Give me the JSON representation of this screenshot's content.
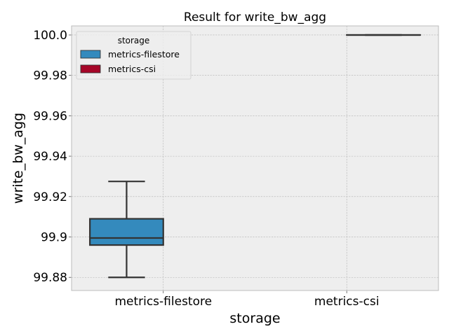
{
  "chart_data": {
    "type": "box",
    "title": "Result for write_bw_agg",
    "xlabel": "storage",
    "ylabel": "write_bw_agg",
    "categories": [
      "metrics-filestore",
      "metrics-csi"
    ],
    "ylim": [
      99.8735,
      100.0045
    ],
    "yticks": [
      99.88,
      99.9,
      99.92,
      99.94,
      99.96,
      99.98,
      100.0
    ],
    "ytick_labels": [
      "99.88",
      "99.9",
      "99.92",
      "99.94",
      "99.96",
      "99.98",
      "100.0"
    ],
    "grid": true,
    "legend": {
      "title": "storage",
      "placement": "upper-left",
      "entries": [
        {
          "name": "metrics-filestore",
          "color": "#348ABD"
        },
        {
          "name": "metrics-csi",
          "color": "#A60628"
        }
      ]
    },
    "boxes": [
      {
        "category": "metrics-filestore",
        "min": 99.88,
        "q1": 99.896,
        "median": 99.8995,
        "q3": 99.909,
        "max": 99.9275,
        "color": "#348ABD"
      },
      {
        "category": "metrics-csi",
        "min": 100.0,
        "q1": 100.0,
        "median": 100.0,
        "q3": 100.0,
        "max": 100.0,
        "color": "#A60628"
      }
    ]
  }
}
